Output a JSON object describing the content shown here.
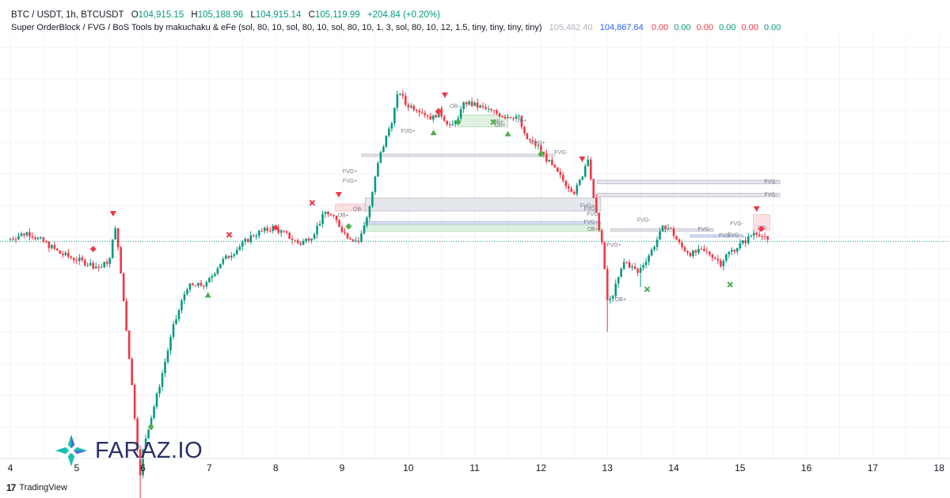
{
  "legend": {
    "symbol": "BTC / USDT, 1h, BTCUSDT",
    "o_label": "O",
    "o_value": "104,915.15",
    "h_label": "H",
    "h_value": "105,188.96",
    "l_label": "L",
    "l_value": "104,915.14",
    "c_label": "C",
    "c_value": "105,119.99",
    "change": "+204.84 (+0.20%)",
    "indicator": "Super OrderBlock / FVG / BoS Tools by makuchaku & eFe (sol, 80, 10, sol, 80, 10, sol, 80, 10, 1, 3, sol, 80, 10, 12, 1.5, tiny, tiny, tiny, tiny)",
    "ind_v1": "105,482.40",
    "ind_v2": "104,867.64",
    "ind_zeros": [
      "0.00",
      "0.00",
      "0.00",
      "0.00",
      "0.00",
      "0.00"
    ],
    "zero_colors": [
      "#f23645",
      "#089981",
      "#f23645",
      "#089981",
      "#f23645",
      "#089981"
    ]
  },
  "colors": {
    "up": "#089981",
    "down": "#f23645",
    "blue": "#2962ff",
    "muted": "#9598a1",
    "zone_gray": "#d1d4dc",
    "zone_green": "#c8e6c9",
    "zone_red": "#f8c9cc",
    "zone_blue": "#c5cae9",
    "marker_green": "#4caf50",
    "marker_red": "#f23645",
    "dotted_line": "#089981"
  },
  "chart_data": {
    "type": "candlestick",
    "x_axis": {
      "ticks": [
        "4",
        "5",
        "6",
        "7",
        "8",
        "9",
        "10",
        "11",
        "12",
        "13",
        "14",
        "15",
        "16",
        "17",
        "18"
      ],
      "unit": "day",
      "range": [
        4,
        18
      ]
    },
    "y_axis": {
      "visible": false,
      "price_min": 92500,
      "price_max": 112000
    },
    "grid": true,
    "current_close": 105119.99,
    "current_high": 105188.96,
    "current_low": 104915.14,
    "path": [
      [
        4.0,
        105200
      ],
      [
        4.3,
        105500
      ],
      [
        4.6,
        105000
      ],
      [
        4.8,
        104600
      ],
      [
        5.0,
        104400
      ],
      [
        5.2,
        104200
      ],
      [
        5.4,
        104000
      ],
      [
        5.55,
        104400
      ],
      [
        5.62,
        105900
      ],
      [
        5.7,
        104000
      ],
      [
        5.85,
        99800
      ],
      [
        6.0,
        95200
      ],
      [
        6.05,
        96500
      ],
      [
        6.25,
        98600
      ],
      [
        6.5,
        101500
      ],
      [
        6.7,
        103200
      ],
      [
        7.0,
        103300
      ],
      [
        7.2,
        104200
      ],
      [
        7.5,
        104900
      ],
      [
        7.7,
        105400
      ],
      [
        8.0,
        105700
      ],
      [
        8.2,
        105400
      ],
      [
        8.4,
        105000
      ],
      [
        8.6,
        105400
      ],
      [
        8.8,
        106400
      ],
      [
        8.95,
        106000
      ],
      [
        9.1,
        105400
      ],
      [
        9.3,
        105100
      ],
      [
        9.45,
        106500
      ],
      [
        9.6,
        108600
      ],
      [
        9.8,
        110300
      ],
      [
        9.9,
        111500
      ],
      [
        10.0,
        110900
      ],
      [
        10.2,
        110700
      ],
      [
        10.4,
        110300
      ],
      [
        10.5,
        110600
      ],
      [
        10.7,
        109900
      ],
      [
        10.9,
        111000
      ],
      [
        11.1,
        110800
      ],
      [
        11.3,
        110600
      ],
      [
        11.5,
        110400
      ],
      [
        11.7,
        110400
      ],
      [
        11.8,
        109500
      ],
      [
        12.0,
        109100
      ],
      [
        12.2,
        108300
      ],
      [
        12.4,
        107600
      ],
      [
        12.55,
        107200
      ],
      [
        12.65,
        107800
      ],
      [
        12.75,
        108700
      ],
      [
        12.85,
        106500
      ],
      [
        12.95,
        105300
      ],
      [
        13.05,
        102400
      ],
      [
        13.15,
        103100
      ],
      [
        13.3,
        104300
      ],
      [
        13.5,
        103800
      ],
      [
        13.7,
        104700
      ],
      [
        13.9,
        105800
      ],
      [
        14.0,
        105600
      ],
      [
        14.15,
        104900
      ],
      [
        14.3,
        104600
      ],
      [
        14.45,
        104700
      ],
      [
        14.6,
        104600
      ],
      [
        14.75,
        104200
      ],
      [
        14.85,
        104600
      ],
      [
        15.0,
        104900
      ],
      [
        15.15,
        105200
      ],
      [
        15.25,
        105500
      ],
      [
        15.32,
        105500
      ],
      [
        15.45,
        105120
      ]
    ],
    "lows": [
      [
        5.95,
        93400
      ],
      [
        13.0,
        101300
      ],
      [
        13.5,
        103200
      ],
      [
        14.75,
        103900
      ]
    ],
    "zones": [
      {
        "x1": 9.3,
        "x2": 12.2,
        "p1": 108800,
        "p2": 108700,
        "color": "gray",
        "label": ""
      },
      {
        "x1": 9.35,
        "x2": 12.9,
        "p1": 106950,
        "p2": 106400,
        "color": "gray",
        "label": "FVG+"
      },
      {
        "x1": 9.35,
        "x2": 12.9,
        "p1": 105950,
        "p2": 105850,
        "color": "blue",
        "label": "FVG+"
      },
      {
        "x1": 9.35,
        "x2": 12.9,
        "p1": 105800,
        "p2": 105550,
        "color": "green",
        "label": "OB+"
      },
      {
        "x1": 12.85,
        "x2": 15.6,
        "p1": 107700,
        "p2": 107550,
        "color": "gray",
        "label": "FVG-"
      },
      {
        "x1": 12.85,
        "x2": 15.6,
        "p1": 107150,
        "p2": 107000,
        "color": "gray",
        "label": "FVG-"
      },
      {
        "x1": 10.75,
        "x2": 11.5,
        "p1": 110450,
        "p2": 109950,
        "color": "green",
        "label": "OB+"
      },
      {
        "x1": 8.9,
        "x2": 9.35,
        "p1": 106700,
        "p2": 106400,
        "color": "red",
        "label": "OB-"
      },
      {
        "x1": 15.2,
        "x2": 15.45,
        "p1": 106250,
        "p2": 105600,
        "color": "red",
        "label": "OB-"
      },
      {
        "x1": 14.25,
        "x2": 15.05,
        "p1": 105400,
        "p2": 105300,
        "color": "blue",
        "label": "FVG-"
      },
      {
        "x1": 13.05,
        "x2": 14.6,
        "p1": 105650,
        "p2": 105550,
        "color": "gray",
        "label": "FVG-"
      }
    ],
    "small_labels": [
      {
        "x": 9.12,
        "p": 108000,
        "t": "FVG+"
      },
      {
        "x": 9.12,
        "p": 107600,
        "t": "FVG+"
      },
      {
        "x": 9.02,
        "p": 106150,
        "t": "OB+"
      },
      {
        "x": 10.0,
        "p": 109700,
        "t": "FVG+"
      },
      {
        "x": 10.7,
        "p": 110750,
        "t": "OB-"
      },
      {
        "x": 11.35,
        "p": 110100,
        "t": "OB+"
      },
      {
        "x": 11.7,
        "p": 110150,
        "t": "OB+"
      },
      {
        "x": 11.95,
        "p": 109200,
        "t": "FVG+"
      },
      {
        "x": 12.3,
        "p": 108800,
        "t": "FVG-"
      },
      {
        "x": 12.7,
        "p": 106550,
        "t": "FVG+"
      },
      {
        "x": 12.8,
        "p": 106200,
        "t": "FVG+"
      },
      {
        "x": 13.1,
        "p": 104900,
        "t": "FVG+"
      },
      {
        "x": 13.2,
        "p": 102600,
        "t": "OB+"
      },
      {
        "x": 13.55,
        "p": 105950,
        "t": "FVG-"
      },
      {
        "x": 14.95,
        "p": 105800,
        "t": "FVG-"
      },
      {
        "x": 14.78,
        "p": 105300,
        "t": "FVG-"
      }
    ],
    "markers": [
      {
        "x": 5.55,
        "p": 106300,
        "type": "tri-down",
        "color": "red"
      },
      {
        "x": 8.95,
        "p": 107100,
        "type": "tri-down",
        "color": "red"
      },
      {
        "x": 10.55,
        "p": 111300,
        "type": "tri-down",
        "color": "red"
      },
      {
        "x": 12.62,
        "p": 108600,
        "type": "tri-down",
        "color": "red"
      },
      {
        "x": 15.25,
        "p": 106500,
        "type": "tri-down",
        "color": "red"
      },
      {
        "x": 6.98,
        "p": 102850,
        "type": "tri-up",
        "color": "green"
      },
      {
        "x": 10.38,
        "p": 109700,
        "type": "tri-up",
        "color": "green"
      },
      {
        "x": 11.5,
        "p": 109650,
        "type": "tri-up",
        "color": "green"
      },
      {
        "x": 12.0,
        "p": 108850,
        "type": "tri-up",
        "color": "green"
      },
      {
        "x": 7.3,
        "p": 105400,
        "type": "x",
        "color": "red"
      },
      {
        "x": 8.55,
        "p": 106750,
        "type": "x",
        "color": "red"
      },
      {
        "x": 11.28,
        "p": 110150,
        "type": "x",
        "color": "green"
      },
      {
        "x": 13.6,
        "p": 103100,
        "type": "x",
        "color": "green"
      },
      {
        "x": 14.85,
        "p": 103300,
        "type": "x",
        "color": "green"
      },
      {
        "x": 5.25,
        "p": 104800,
        "type": "diamond",
        "color": "red"
      },
      {
        "x": 6.12,
        "p": 97300,
        "type": "diamond",
        "color": "green"
      },
      {
        "x": 8.0,
        "p": 105700,
        "type": "diamond",
        "color": "red"
      },
      {
        "x": 9.1,
        "p": 105750,
        "type": "diamond",
        "color": "green"
      },
      {
        "x": 10.45,
        "p": 110600,
        "type": "diamond",
        "color": "red"
      },
      {
        "x": 10.75,
        "p": 110150,
        "type": "diamond",
        "color": "green"
      },
      {
        "x": 12.0,
        "p": 108800,
        "type": "diamond",
        "color": "green"
      },
      {
        "x": 15.32,
        "p": 105650,
        "type": "diamond",
        "color": "red"
      }
    ]
  },
  "brand": {
    "name": "FARAZ.IO"
  },
  "footer": {
    "mark": "17",
    "text": "TradingView"
  }
}
